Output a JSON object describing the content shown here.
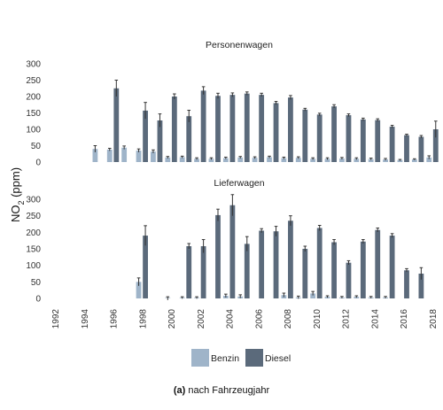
{
  "caption": {
    "label": "(a)",
    "text": " nach Fahrzeugjahr"
  },
  "colors": {
    "benzin": "#9fb4c9",
    "diesel": "#5b6a7b",
    "error": "#333333"
  },
  "chart_data": {
    "type": "bar",
    "ylabel_main": "NO",
    "ylabel_sub": "2",
    "ylabel_rest": " (ppm)",
    "ylim": [
      0,
      300
    ],
    "yticks": [
      0,
      50,
      100,
      150,
      200,
      250,
      300
    ],
    "xticks": [
      1992,
      1994,
      1996,
      1998,
      2000,
      2002,
      2004,
      2006,
      2008,
      2010,
      2012,
      2014,
      2016,
      2018
    ],
    "legend": [
      "Benzin",
      "Diesel"
    ],
    "legend_position": "bottom",
    "panels": [
      {
        "title": "Personenwagen",
        "series": [
          {
            "name": "Benzin",
            "points": [
              {
                "x": 1995,
                "y": 40,
                "err": 10
              },
              {
                "x": 1996,
                "y": 38,
                "err": 4
              },
              {
                "x": 1997,
                "y": 44,
                "err": 5
              },
              {
                "x": 1998,
                "y": 35,
                "err": 5
              },
              {
                "x": 1999,
                "y": 32,
                "err": 5
              },
              {
                "x": 2000,
                "y": 14,
                "err": 3
              },
              {
                "x": 2001,
                "y": 15,
                "err": 3
              },
              {
                "x": 2002,
                "y": 10,
                "err": 3
              },
              {
                "x": 2003,
                "y": 10,
                "err": 3
              },
              {
                "x": 2004,
                "y": 12,
                "err": 3
              },
              {
                "x": 2005,
                "y": 14,
                "err": 3
              },
              {
                "x": 2006,
                "y": 13,
                "err": 3
              },
              {
                "x": 2007,
                "y": 15,
                "err": 3
              },
              {
                "x": 2008,
                "y": 12,
                "err": 3
              },
              {
                "x": 2009,
                "y": 13,
                "err": 3
              },
              {
                "x": 2010,
                "y": 10,
                "err": 3
              },
              {
                "x": 2011,
                "y": 10,
                "err": 3
              },
              {
                "x": 2012,
                "y": 11,
                "err": 3
              },
              {
                "x": 2013,
                "y": 10,
                "err": 3
              },
              {
                "x": 2014,
                "y": 9,
                "err": 3
              },
              {
                "x": 2015,
                "y": 8,
                "err": 3
              },
              {
                "x": 2016,
                "y": 6,
                "err": 2
              },
              {
                "x": 2017,
                "y": 8,
                "err": 2
              },
              {
                "x": 2018,
                "y": 14,
                "err": 5
              }
            ]
          },
          {
            "name": "Diesel",
            "points": [
              {
                "x": 1996,
                "y": 225,
                "err": 25
              },
              {
                "x": 1998,
                "y": 157,
                "err": 25
              },
              {
                "x": 1999,
                "y": 127,
                "err": 20
              },
              {
                "x": 2000,
                "y": 200,
                "err": 8
              },
              {
                "x": 2001,
                "y": 140,
                "err": 18
              },
              {
                "x": 2002,
                "y": 218,
                "err": 12
              },
              {
                "x": 2003,
                "y": 202,
                "err": 8
              },
              {
                "x": 2004,
                "y": 205,
                "err": 6
              },
              {
                "x": 2005,
                "y": 209,
                "err": 5
              },
              {
                "x": 2006,
                "y": 205,
                "err": 5
              },
              {
                "x": 2007,
                "y": 180,
                "err": 5
              },
              {
                "x": 2008,
                "y": 197,
                "err": 6
              },
              {
                "x": 2009,
                "y": 160,
                "err": 4
              },
              {
                "x": 2010,
                "y": 145,
                "err": 4
              },
              {
                "x": 2011,
                "y": 170,
                "err": 5
              },
              {
                "x": 2012,
                "y": 143,
                "err": 4
              },
              {
                "x": 2013,
                "y": 130,
                "err": 4
              },
              {
                "x": 2014,
                "y": 128,
                "err": 4
              },
              {
                "x": 2015,
                "y": 108,
                "err": 4
              },
              {
                "x": 2016,
                "y": 82,
                "err": 3
              },
              {
                "x": 2017,
                "y": 77,
                "err": 4
              },
              {
                "x": 2018,
                "y": 100,
                "err": 25
              }
            ]
          }
        ]
      },
      {
        "title": "Lieferwagen",
        "series": [
          {
            "name": "Benzin",
            "points": [
              {
                "x": 1998,
                "y": 50,
                "err": 12
              },
              {
                "x": 2000,
                "y": 0,
                "err": 5
              },
              {
                "x": 2001,
                "y": 2,
                "err": 3
              },
              {
                "x": 2002,
                "y": 2,
                "err": 3
              },
              {
                "x": 2004,
                "y": 8,
                "err": 5
              },
              {
                "x": 2005,
                "y": 6,
                "err": 5
              },
              {
                "x": 2008,
                "y": 10,
                "err": 6
              },
              {
                "x": 2009,
                "y": 3,
                "err": 4
              },
              {
                "x": 2010,
                "y": 15,
                "err": 6
              },
              {
                "x": 2011,
                "y": 5,
                "err": 3
              },
              {
                "x": 2012,
                "y": 3,
                "err": 3
              },
              {
                "x": 2013,
                "y": 5,
                "err": 3
              },
              {
                "x": 2014,
                "y": 3,
                "err": 3
              },
              {
                "x": 2015,
                "y": 3,
                "err": 3
              }
            ]
          },
          {
            "name": "Diesel",
            "points": [
              {
                "x": 1998,
                "y": 190,
                "err": 30
              },
              {
                "x": 2001,
                "y": 158,
                "err": 8
              },
              {
                "x": 2002,
                "y": 158,
                "err": 20
              },
              {
                "x": 2003,
                "y": 252,
                "err": 18
              },
              {
                "x": 2004,
                "y": 282,
                "err": 32
              },
              {
                "x": 2005,
                "y": 165,
                "err": 22
              },
              {
                "x": 2006,
                "y": 205,
                "err": 6
              },
              {
                "x": 2007,
                "y": 203,
                "err": 15
              },
              {
                "x": 2008,
                "y": 235,
                "err": 15
              },
              {
                "x": 2009,
                "y": 150,
                "err": 8
              },
              {
                "x": 2010,
                "y": 213,
                "err": 8
              },
              {
                "x": 2011,
                "y": 170,
                "err": 8
              },
              {
                "x": 2012,
                "y": 108,
                "err": 6
              },
              {
                "x": 2013,
                "y": 172,
                "err": 6
              },
              {
                "x": 2014,
                "y": 207,
                "err": 6
              },
              {
                "x": 2015,
                "y": 190,
                "err": 6
              },
              {
                "x": 2016,
                "y": 85,
                "err": 5
              },
              {
                "x": 2017,
                "y": 75,
                "err": 18
              }
            ]
          }
        ]
      }
    ]
  }
}
